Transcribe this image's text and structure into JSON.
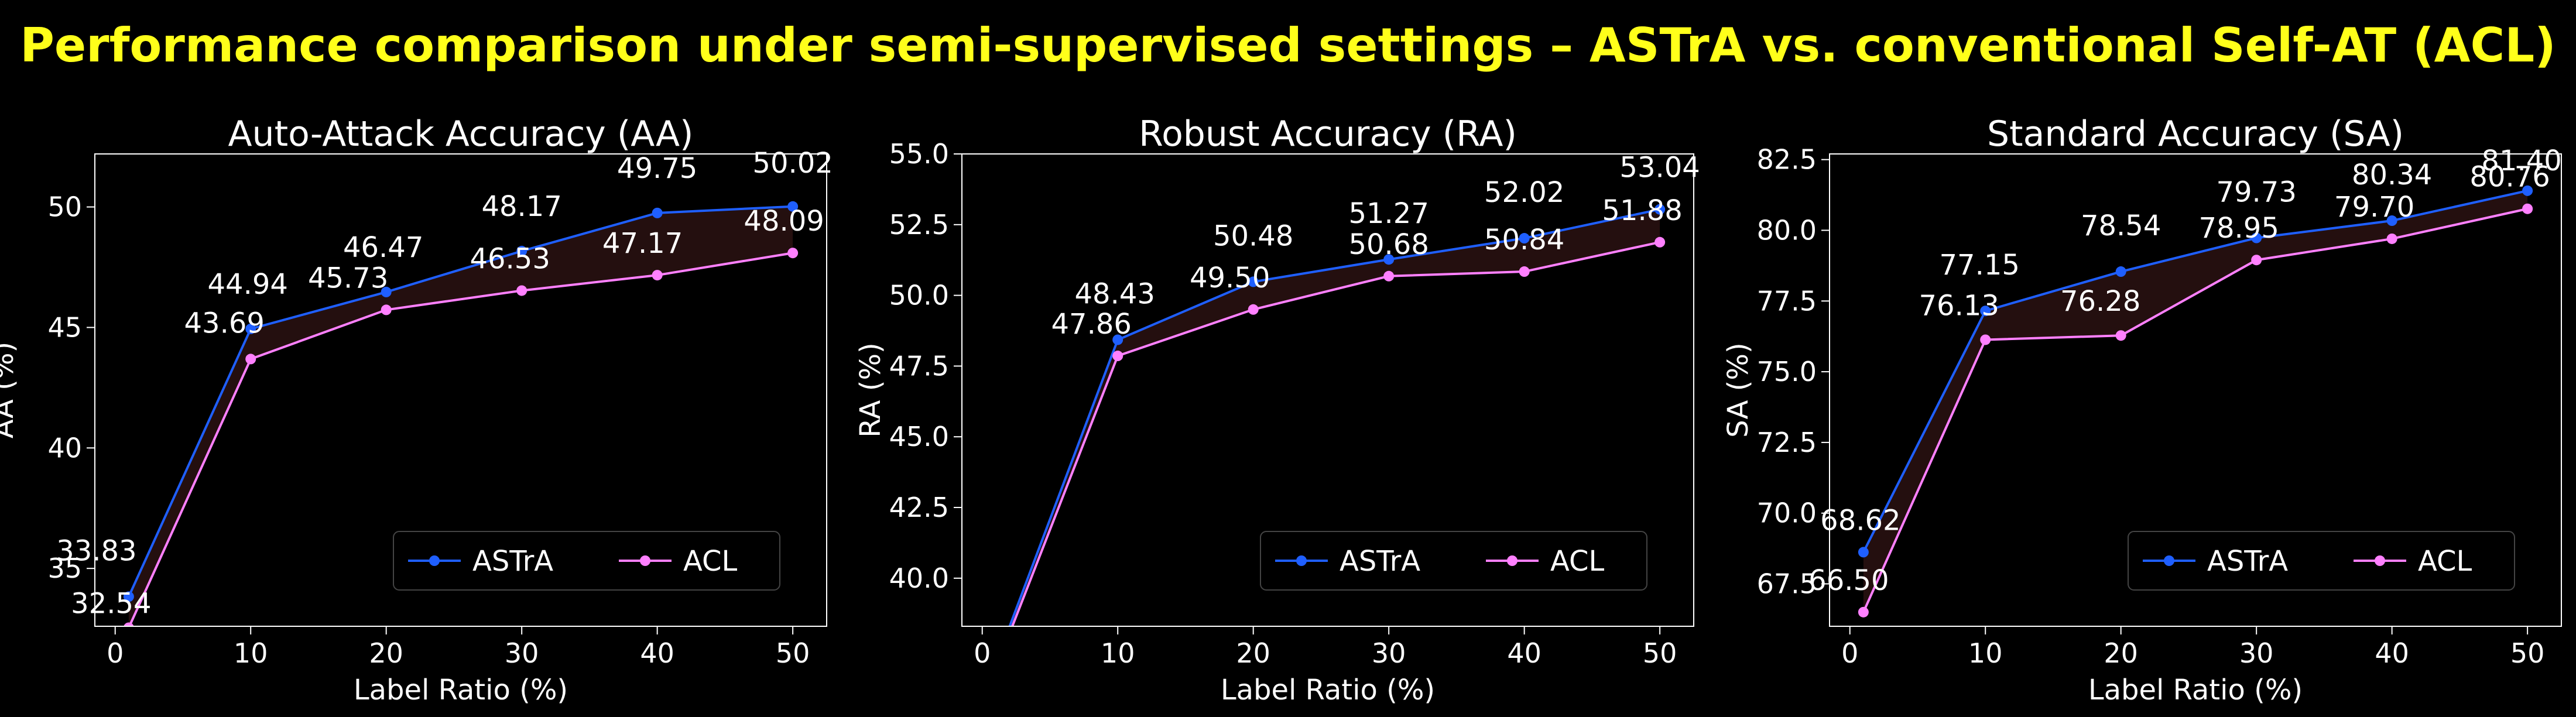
{
  "figure": {
    "title": "Performance comparison under semi-supervised settings – ASTrA vs. conventional Self-AT (ACL)",
    "colors": {
      "background": "#000000",
      "title": "#ffff1a",
      "astra": "#1f5fff",
      "acl": "#ff80ff",
      "fill": "#2a1212",
      "axes": "#ffffff"
    }
  },
  "chart_data": [
    {
      "type": "line",
      "title": "Auto-Attack Accuracy (AA)",
      "xlabel": "Label Ratio (%)",
      "ylabel": "AA (%)",
      "x": [
        1,
        10,
        20,
        30,
        40,
        50
      ],
      "xlim": [
        -1.5,
        52.5
      ],
      "ylim": [
        32.6,
        52.2
      ],
      "xticks": [
        0,
        10,
        20,
        30,
        40,
        50
      ],
      "xtick_labels": [
        "0",
        "10",
        "20",
        "30",
        "40",
        "50"
      ],
      "yticks": [
        35,
        40,
        45,
        50
      ],
      "ytick_labels": [
        "35",
        "40",
        "45",
        "50"
      ],
      "legend": "lower-right",
      "series": [
        {
          "name": "ASTrA",
          "values": [
            33.83,
            44.94,
            46.47,
            48.17,
            49.75,
            50.02
          ],
          "labels": [
            "33.83",
            "44.94",
            "46.47",
            "48.17",
            "49.75",
            "50.02"
          ]
        },
        {
          "name": "ACL",
          "values": [
            32.54,
            43.69,
            45.73,
            46.53,
            47.17,
            48.09
          ],
          "labels": [
            "32.54",
            "43.69",
            "45.73",
            "46.53",
            "47.17",
            "48.09"
          ]
        }
      ]
    },
    {
      "type": "line",
      "title": "Robust Accuracy (RA)",
      "xlabel": "Label Ratio (%)",
      "ylabel": "RA (%)",
      "x": [
        1,
        10,
        20,
        30,
        40,
        50
      ],
      "xlim": [
        -1.5,
        52.5
      ],
      "ylim": [
        38.3,
        55.0
      ],
      "xticks": [
        0,
        10,
        20,
        30,
        40,
        50
      ],
      "xtick_labels": [
        "0",
        "10",
        "20",
        "30",
        "40",
        "50"
      ],
      "yticks": [
        40.0,
        42.5,
        45.0,
        47.5,
        50.0,
        52.5,
        55.0
      ],
      "ytick_labels": [
        "40.0",
        "42.5",
        "45.0",
        "47.5",
        "50.0",
        "52.5",
        "55.0"
      ],
      "legend": "lower-right",
      "series": [
        {
          "name": "ASTrA",
          "values": [
            37.0,
            48.43,
            50.48,
            51.27,
            52.02,
            53.04
          ],
          "labels": [
            "",
            "48.43",
            "50.48",
            "51.27",
            "52.02",
            "53.04"
          ]
        },
        {
          "name": "ACL",
          "values": [
            36.8,
            47.86,
            49.5,
            50.68,
            50.84,
            51.88
          ],
          "labels": [
            "",
            "47.86",
            "49.50",
            "50.68",
            "50.84",
            "51.88"
          ]
        }
      ]
    },
    {
      "type": "line",
      "title": "Standard Accuracy (SA)",
      "xlabel": "Label Ratio (%)",
      "ylabel": "SA (%)",
      "x": [
        1,
        10,
        20,
        30,
        40,
        50
      ],
      "xlim": [
        -1.5,
        52.5
      ],
      "ylim": [
        66.0,
        82.7
      ],
      "xticks": [
        0,
        10,
        20,
        30,
        40,
        50
      ],
      "xtick_labels": [
        "0",
        "10",
        "20",
        "30",
        "40",
        "50"
      ],
      "yticks": [
        67.5,
        70.0,
        72.5,
        75.0,
        77.5,
        80.0,
        82.5
      ],
      "ytick_labels": [
        "67.5",
        "70.0",
        "72.5",
        "75.0",
        "77.5",
        "80.0",
        "82.5"
      ],
      "legend": "lower-right",
      "series": [
        {
          "name": "ASTrA",
          "values": [
            68.62,
            77.15,
            78.54,
            79.73,
            80.34,
            81.4
          ],
          "labels": [
            "68.62",
            "77.15",
            "78.54",
            "79.73",
            "80.34",
            "81.40"
          ]
        },
        {
          "name": "ACL",
          "values": [
            66.5,
            76.13,
            76.28,
            78.95,
            79.7,
            80.76
          ],
          "labels": [
            "66.50",
            "76.13",
            "76.28",
            "78.95",
            "79.70",
            "80.76"
          ]
        }
      ]
    }
  ]
}
